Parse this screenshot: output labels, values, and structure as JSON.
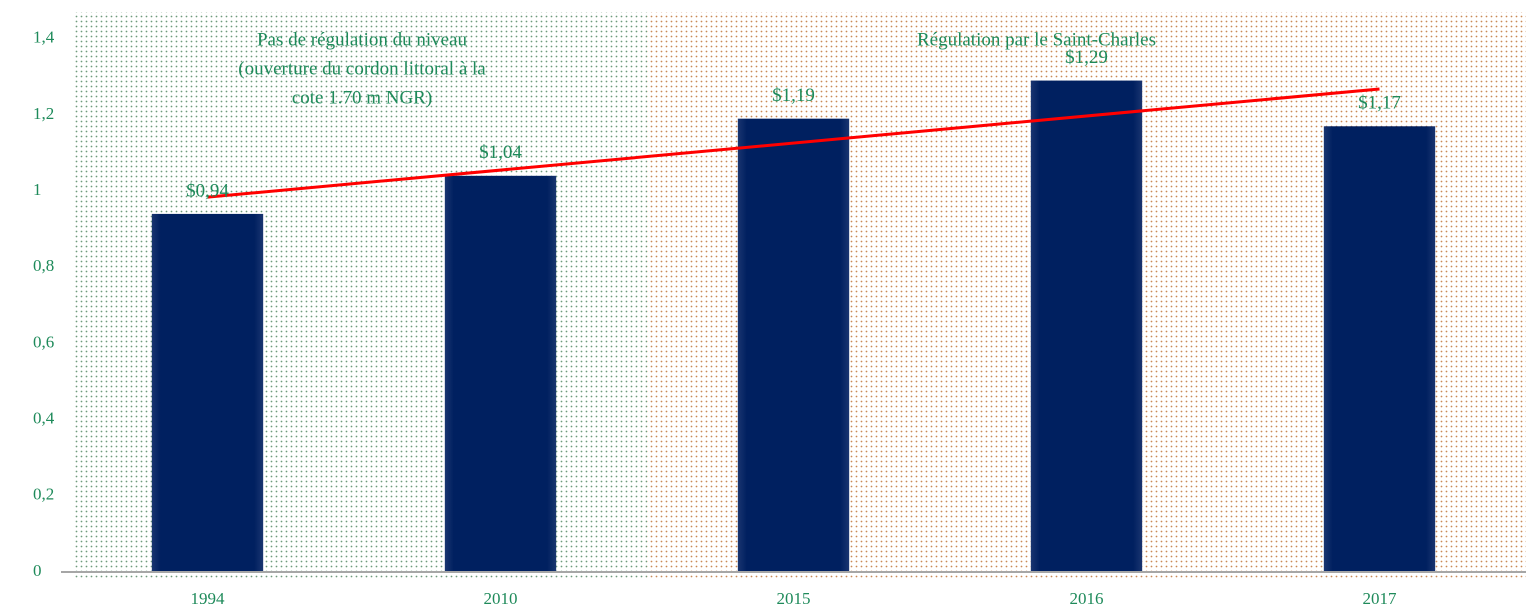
{
  "chart_data": {
    "type": "bar",
    "categories": [
      "1994",
      "2010",
      "2015",
      "2016",
      "2017"
    ],
    "values": [
      0.94,
      1.04,
      1.19,
      1.29,
      1.17
    ],
    "value_labels": [
      "$0,94",
      "$1,04",
      "$1,19",
      "$1,29",
      "$1,17"
    ],
    "color": "#002060",
    "ylim": [
      0,
      1.47
    ],
    "yticks": [
      0,
      {
        "value": 0.2,
        "label": "0,2"
      },
      {
        "value": 0.4,
        "label": "0,4"
      },
      {
        "value": 0.6,
        "label": "0,6"
      },
      {
        "value": 0.8,
        "label": "0,8"
      },
      1,
      {
        "value": 1.2,
        "label": "1,2"
      },
      {
        "value": 1.4,
        "label": "1,4"
      }
    ],
    "trendline": true,
    "trendline_color": "#ff0000",
    "regions": [
      {
        "from": "1994",
        "to": "2010",
        "color": "#6f9a7c",
        "label_lines": [
          "Pas de régulation du niveau",
          "(ouverture du cordon littoral à la",
          "cote 1.70 m NGR)"
        ]
      },
      {
        "from": "2015",
        "to": "2017",
        "color": "#c98a55",
        "label_lines": [
          "Régulation par le Saint-Charles"
        ]
      }
    ]
  }
}
